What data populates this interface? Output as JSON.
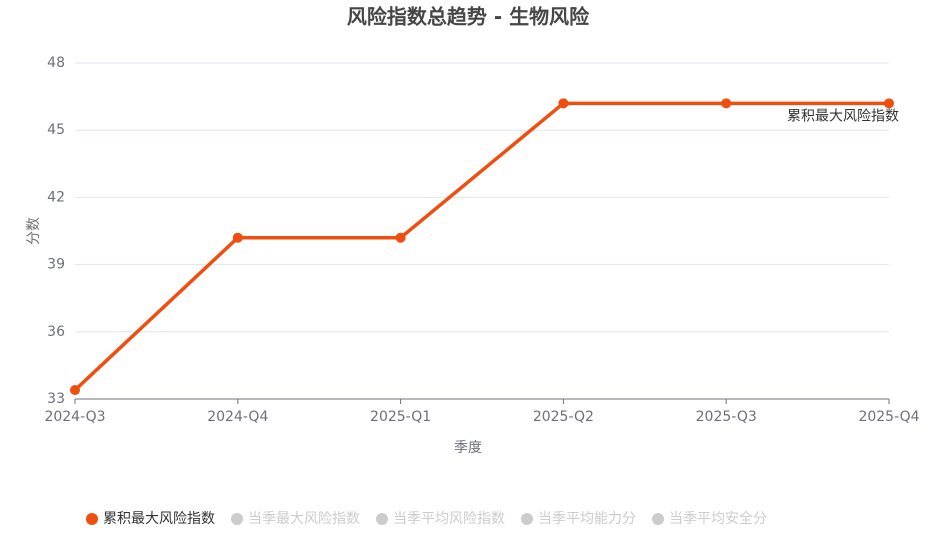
{
  "chart_data": {
    "type": "line",
    "title": "风险指数总趋势 - 生物风险",
    "x_label": "季度",
    "y_label": "分数",
    "categories": [
      "2024-Q3",
      "2024-Q4",
      "2025-Q1",
      "2025-Q2",
      "2025-Q3",
      "2025-Q4"
    ],
    "series": [
      {
        "name": "累积最大风险指数",
        "color": "#f04e0e",
        "values": [
          33.4,
          40.2,
          40.2,
          46.2,
          46.2,
          46.2
        ],
        "end_label": true
      },
      {
        "name": "当季最大风险指数",
        "color": "#cccccc",
        "hidden": true,
        "values": [
          null,
          null,
          null,
          null,
          null,
          null
        ]
      },
      {
        "name": "当季平均风险指数",
        "color": "#cccccc",
        "hidden": true,
        "values": [
          null,
          null,
          null,
          null,
          null,
          null
        ]
      },
      {
        "name": "当季平均能力分",
        "color": "#cccccc",
        "hidden": true,
        "values": [
          null,
          null,
          null,
          null,
          null,
          null
        ]
      },
      {
        "name": "当季平均安全分",
        "color": "#cccccc",
        "hidden": true,
        "values": [
          null,
          null,
          null,
          null,
          null,
          null
        ]
      }
    ],
    "ylim": [
      33,
      48
    ],
    "yticks": [
      33,
      36,
      39,
      42,
      45,
      48
    ],
    "grid": true,
    "legend": "bottom"
  }
}
